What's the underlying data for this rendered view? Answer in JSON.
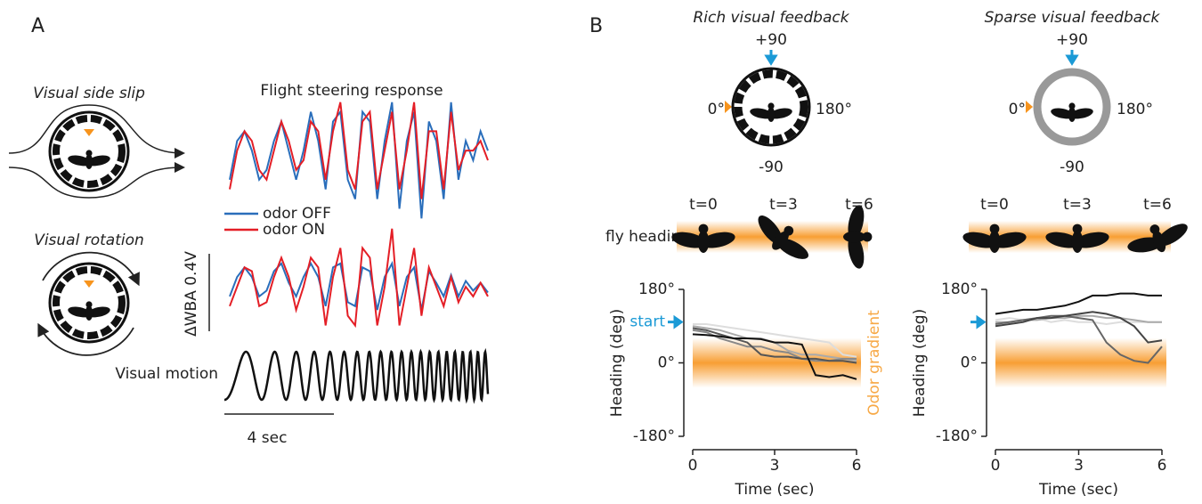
{
  "panel_a": {
    "label": "A",
    "side_slip": "Visual side slip",
    "rotation": "Visual rotation",
    "steering_title": "Flight steering response",
    "legend": [
      {
        "name": "odor OFF",
        "color": "#2a6ebb"
      },
      {
        "name": "odor ON",
        "color": "#e41e26"
      }
    ],
    "scale_bar": "ΔWBA 0.4V",
    "motion_label": "Visual motion",
    "time_bar": "4 sec",
    "slip_traces": [
      [
        -0.1,
        0.1,
        0.15,
        0.05,
        -0.1,
        -0.05,
        0.1,
        0.2,
        0.05,
        -0.1,
        0.05,
        0.25,
        0.1,
        -0.15,
        0.2,
        0.25,
        -0.1,
        -0.2,
        0.25,
        0.2,
        -0.2,
        0.1,
        0.3,
        -0.25,
        0.1,
        0.25,
        -0.3,
        0.2,
        0.1,
        -0.2,
        0.3,
        -0.1,
        0.1,
        0.0,
        0.15,
        0.05
      ],
      [
        -0.15,
        0.05,
        0.15,
        0.1,
        -0.05,
        -0.1,
        0.05,
        0.2,
        0.1,
        -0.05,
        0.0,
        0.2,
        0.15,
        -0.1,
        0.15,
        0.3,
        -0.05,
        -0.15,
        0.2,
        0.25,
        -0.15,
        0.05,
        0.25,
        -0.15,
        0.05,
        0.3,
        -0.2,
        0.15,
        0.15,
        -0.15,
        0.25,
        -0.05,
        0.05,
        0.05,
        0.1,
        0.0
      ]
    ],
    "rotation_traces": [
      [
        -0.05,
        0.05,
        0.1,
        0.05,
        -0.05,
        -0.02,
        0.08,
        0.12,
        0.02,
        -0.05,
        0.05,
        0.12,
        0.05,
        -0.1,
        0.1,
        0.12,
        -0.08,
        -0.1,
        0.1,
        0.08,
        -0.12,
        0.05,
        0.12,
        -0.1,
        0.05,
        0.1,
        -0.12,
        0.08,
        0.02,
        -0.05,
        0.06,
        -0.05,
        0.03,
        -0.02,
        0.02,
        -0.03
      ],
      [
        -0.1,
        0.0,
        0.1,
        0.08,
        -0.1,
        -0.08,
        0.05,
        0.15,
        0.05,
        -0.12,
        0.0,
        0.15,
        0.1,
        -0.2,
        0.05,
        0.2,
        -0.15,
        -0.2,
        0.2,
        0.15,
        -0.2,
        0.0,
        0.3,
        -0.2,
        0.0,
        0.2,
        -0.15,
        0.1,
        0.0,
        -0.1,
        0.05,
        -0.08,
        0.0,
        -0.05,
        0.02,
        -0.05
      ]
    ]
  },
  "panel_b": {
    "label": "B",
    "fly_heading": "fly heading",
    "plots": [
      {
        "title": "Rich visual feedback",
        "top": "+90",
        "left": "0°",
        "right": "180°",
        "bottom": "-90",
        "times": [
          "t=0",
          "t=3",
          "t=6"
        ],
        "start_label": "start",
        "start_heading": 100,
        "band_label": "Odor gradient",
        "chart": {
          "type": "line",
          "xlabel": "Time (sec)",
          "ylabel": "Heading (deg)",
          "x": [
            0,
            0.5,
            1,
            1.5,
            2,
            2.5,
            3,
            3.5,
            4,
            4.5,
            5,
            5.5,
            6
          ],
          "xlim": [
            0,
            6
          ],
          "xticks": [
            0,
            3,
            6
          ],
          "ylim": [
            -180,
            180
          ],
          "yticks": [
            {
              "value": -180,
              "label": "-180°"
            },
            {
              "value": 0,
              "label": "0°"
            },
            {
              "value": 180,
              "label": "180°"
            }
          ],
          "series": [
            {
              "color": "#dddddd",
              "values": [
                95,
                95,
                90,
                85,
                80,
                75,
                70,
                65,
                60,
                55,
                50,
                20,
                15
              ]
            },
            {
              "color": "#aaaaaa",
              "values": [
                90,
                85,
                80,
                70,
                60,
                60,
                50,
                30,
                20,
                20,
                15,
                10,
                5
              ]
            },
            {
              "color": "#888888",
              "values": [
                80,
                75,
                60,
                50,
                40,
                40,
                30,
                25,
                10,
                5,
                5,
                10,
                10
              ]
            },
            {
              "color": "#555555",
              "values": [
                85,
                80,
                70,
                60,
                50,
                20,
                15,
                15,
                10,
                10,
                5,
                5,
                0
              ]
            },
            {
              "color": "#111111",
              "values": [
                70,
                68,
                65,
                60,
                60,
                58,
                50,
                50,
                45,
                -30,
                -35,
                -30,
                -40
              ]
            }
          ]
        }
      },
      {
        "title": "Sparse visual feedback",
        "top": "+90",
        "left": "0°",
        "right": "180°",
        "bottom": "-90",
        "times": [
          "t=0",
          "t=3",
          "t=6"
        ],
        "start_heading": 100,
        "chart": {
          "type": "line",
          "xlabel": "Time (sec)",
          "ylabel": "Heading (deg)",
          "x": [
            0,
            0.5,
            1,
            1.5,
            2,
            2.5,
            3,
            3.5,
            4,
            4.5,
            5,
            5.5,
            6
          ],
          "xlim": [
            0,
            6
          ],
          "xticks": [
            0,
            3,
            6
          ],
          "ylim": [
            -180,
            180
          ],
          "yticks": [
            {
              "value": -180,
              "label": "-180°"
            },
            {
              "value": 0,
              "label": "0°"
            },
            {
              "value": 180,
              "label": "180°"
            }
          ],
          "series": [
            {
              "color": "#dddddd",
              "values": [
                105,
                110,
                105,
                110,
                100,
                105,
                100,
                100,
                95,
                100,
                100,
                100,
                100
              ]
            },
            {
              "color": "#aaaaaa",
              "values": [
                100,
                100,
                105,
                105,
                110,
                110,
                115,
                115,
                110,
                110,
                105,
                100,
                100
              ]
            },
            {
              "color": "#666666",
              "values": [
                95,
                100,
                105,
                110,
                115,
                115,
                110,
                105,
                50,
                20,
                5,
                0,
                40
              ]
            },
            {
              "color": "#444444",
              "values": [
                90,
                95,
                100,
                110,
                110,
                115,
                120,
                125,
                120,
                110,
                90,
                50,
                55
              ]
            },
            {
              "color": "#111111",
              "values": [
                120,
                125,
                130,
                130,
                135,
                140,
                150,
                165,
                165,
                170,
                170,
                165,
                165
              ]
            }
          ]
        }
      }
    ]
  }
}
